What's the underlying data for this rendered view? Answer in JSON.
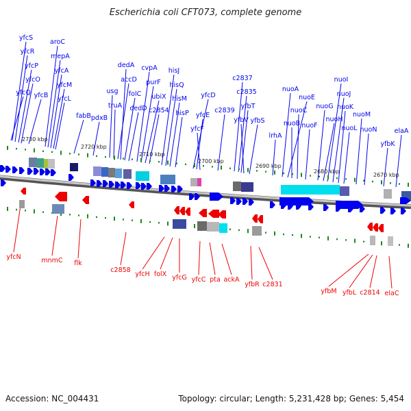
{
  "title": "Escherichia coli CFT073, complete genome",
  "footer": {
    "accession": "Accession: NC_004431",
    "summary": "Topology: circular; Length: 5,231,428 bp; Genes: 5,454"
  },
  "colors": {
    "forward": "#0000ee",
    "reverse": "#ee0000",
    "axis": "#888888",
    "tick": "#1a8a1a"
  },
  "kbp_ticks": [
    "2730 kbp",
    "2720 kbp",
    "2710 kbp",
    "2700 kbp",
    "2690 kbp",
    "2680 kbp",
    "2670 kbp"
  ],
  "forward_genes": [
    "yfcS",
    "yfcR",
    "yfcP",
    "yfcO",
    "yfcQ",
    "yfcB",
    "aroC",
    "mepA",
    "yfcA",
    "yfcM",
    "yfcL",
    "fabB",
    "pdxB",
    "usg",
    "truA",
    "accD",
    "dedA",
    "folC",
    "dedD",
    "cvpA",
    "purF",
    "ubiX",
    "c2854",
    "hisJ",
    "hisQ",
    "hisM",
    "hisP",
    "yfcD",
    "yfcE",
    "yfcF",
    "c2839",
    "c2837",
    "c2835",
    "yfbT",
    "yfbV",
    "yfbS",
    "lrhA",
    "nuoA",
    "nuoE",
    "nuoB",
    "nuoC",
    "nuoF",
    "nuoG",
    "nuoH",
    "nuoI",
    "nuoJ",
    "nuoK",
    "nuoL",
    "nuoM",
    "nuoN",
    "yfbK",
    "elaA"
  ],
  "reverse_genes": [
    "yfcN",
    "mnmC",
    "flk",
    "c2858",
    "yfcH",
    "folX",
    "yfcG",
    "yfcC",
    "pta",
    "ackA",
    "yfbR",
    "c2831",
    "yfbM",
    "yfbL",
    "c2814",
    "elaC"
  ]
}
